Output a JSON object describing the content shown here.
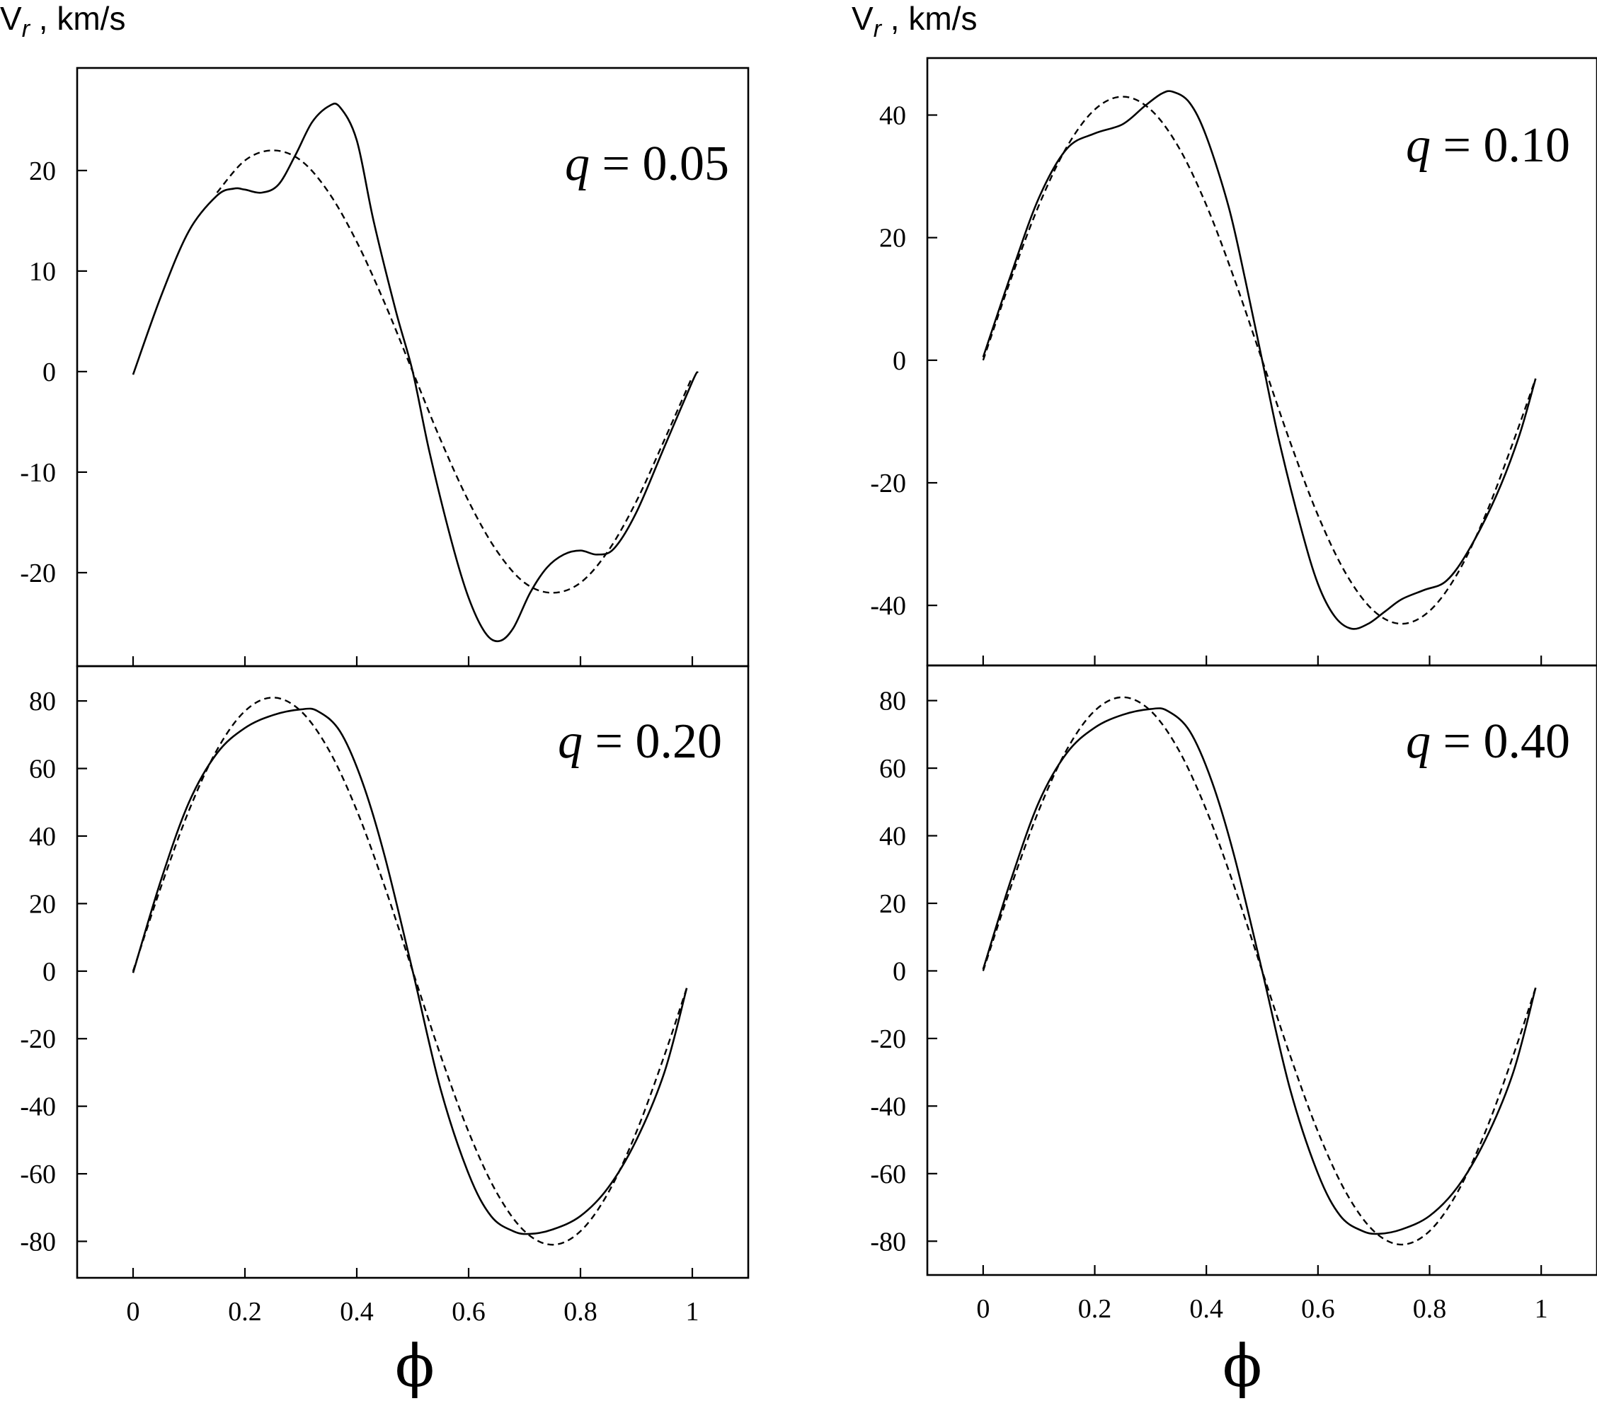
{
  "figure": {
    "y_axis_label_main": "V",
    "y_axis_label_sub": "r",
    "y_axis_label_unit": " , km/s",
    "x_axis_label": "ϕ"
  },
  "chart_data": [
    {
      "type": "line",
      "panel_label": "q = 0.05",
      "panel_label_var": "q",
      "panel_label_value": " = 0.05",
      "xlim": [
        -0.1,
        1.1
      ],
      "ylim": [
        -29.3,
        30.2
      ],
      "x_ticks": [
        0,
        0.2,
        0.4,
        0.6,
        0.8,
        1
      ],
      "x_tick_labels": [
        "0",
        "0.2",
        "0.4",
        "0.6",
        "0.8",
        "1"
      ],
      "y_ticks": [
        -20,
        -10,
        0,
        10,
        20
      ],
      "y_tick_labels": [
        "-20",
        "-10",
        "0",
        "10",
        "20"
      ],
      "series": [
        {
          "style": "solid",
          "points": [
            [
              0,
              -0.3
            ],
            [
              0.05,
              7.5
            ],
            [
              0.1,
              14
            ],
            [
              0.15,
              17.5
            ],
            [
              0.18,
              18.2
            ],
            [
              0.2,
              18.1
            ],
            [
              0.23,
              17.8
            ],
            [
              0.26,
              18.6
            ],
            [
              0.29,
              21.5
            ],
            [
              0.32,
              24.8
            ],
            [
              0.35,
              26.4
            ],
            [
              0.37,
              26.3
            ],
            [
              0.4,
              23
            ],
            [
              0.43,
              15
            ],
            [
              0.47,
              6
            ],
            [
              0.5,
              0
            ],
            [
              0.53,
              -8
            ],
            [
              0.57,
              -17
            ],
            [
              0.6,
              -22.5
            ],
            [
              0.63,
              -26
            ],
            [
              0.655,
              -26.8
            ],
            [
              0.68,
              -25.5
            ],
            [
              0.71,
              -22
            ],
            [
              0.74,
              -19.5
            ],
            [
              0.77,
              -18.2
            ],
            [
              0.8,
              -17.8
            ],
            [
              0.83,
              -18.2
            ],
            [
              0.86,
              -17.6
            ],
            [
              0.9,
              -14
            ],
            [
              0.95,
              -7.5
            ],
            [
              1.0,
              -1
            ],
            [
              1.01,
              0
            ]
          ]
        },
        {
          "style": "dashed",
          "points": [
            [
              0.15,
              17.8
            ],
            [
              0.2,
              21
            ],
            [
              0.25,
              22
            ],
            [
              0.3,
              21
            ],
            [
              0.35,
              17.8
            ],
            [
              0.4,
              12.9
            ],
            [
              0.45,
              6.8
            ],
            [
              0.5,
              0
            ],
            [
              0.55,
              -6.8
            ],
            [
              0.6,
              -12.9
            ],
            [
              0.65,
              -17.8
            ],
            [
              0.7,
              -21
            ],
            [
              0.75,
              -22
            ],
            [
              0.8,
              -21
            ],
            [
              0.85,
              -17.8
            ],
            [
              0.9,
              -12.9
            ],
            [
              0.95,
              -6.8
            ],
            [
              1.0,
              -0.5
            ]
          ]
        }
      ]
    },
    {
      "type": "line",
      "panel_label": "q = 0.10",
      "panel_label_var": "q",
      "panel_label_value": " = 0.10",
      "xlim": [
        -0.1,
        1.1
      ],
      "ylim": [
        -49.8,
        49.3
      ],
      "x_ticks": [
        0,
        0.2,
        0.4,
        0.6,
        0.8,
        1
      ],
      "x_tick_labels": [
        "0",
        "0.2",
        "0.4",
        "0.6",
        "0.8",
        "1"
      ],
      "y_ticks": [
        -40,
        -20,
        0,
        20,
        40
      ],
      "y_tick_labels": [
        "-40",
        "-20",
        "0",
        "20",
        "40"
      ],
      "series": [
        {
          "style": "solid",
          "points": [
            [
              0,
              0.5
            ],
            [
              0.05,
              14
            ],
            [
              0.1,
              26.5
            ],
            [
              0.15,
              34.5
            ],
            [
              0.2,
              37
            ],
            [
              0.25,
              38.5
            ],
            [
              0.29,
              41.5
            ],
            [
              0.32,
              43.5
            ],
            [
              0.34,
              43.8
            ],
            [
              0.37,
              42
            ],
            [
              0.4,
              36.5
            ],
            [
              0.44,
              25
            ],
            [
              0.47,
              13
            ],
            [
              0.5,
              0
            ],
            [
              0.53,
              -13
            ],
            [
              0.57,
              -27.5
            ],
            [
              0.6,
              -36.5
            ],
            [
              0.63,
              -41.8
            ],
            [
              0.66,
              -43.8
            ],
            [
              0.69,
              -43
            ],
            [
              0.72,
              -41
            ],
            [
              0.75,
              -39
            ],
            [
              0.79,
              -37.5
            ],
            [
              0.83,
              -36
            ],
            [
              0.87,
              -31
            ],
            [
              0.92,
              -22
            ],
            [
              0.96,
              -12.5
            ],
            [
              0.99,
              -3
            ]
          ]
        },
        {
          "style": "dashed",
          "points": [
            [
              0,
              0
            ],
            [
              0.05,
              13.3
            ],
            [
              0.1,
              25.3
            ],
            [
              0.15,
              34.8
            ],
            [
              0.2,
              40.9
            ],
            [
              0.25,
              43
            ],
            [
              0.3,
              40.9
            ],
            [
              0.35,
              34.8
            ],
            [
              0.4,
              25.3
            ],
            [
              0.45,
              13.3
            ],
            [
              0.5,
              0
            ],
            [
              0.55,
              -13.3
            ],
            [
              0.6,
              -25.3
            ],
            [
              0.65,
              -34.8
            ],
            [
              0.7,
              -40.9
            ],
            [
              0.75,
              -43
            ],
            [
              0.8,
              -40.9
            ],
            [
              0.85,
              -34.8
            ],
            [
              0.9,
              -25.3
            ],
            [
              0.95,
              -13.3
            ],
            [
              0.99,
              -3
            ]
          ]
        }
      ]
    },
    {
      "type": "line",
      "panel_label": "q = 0.20",
      "panel_label_var": "q",
      "panel_label_value": " = 0.20",
      "xlim": [
        -0.1,
        1.1
      ],
      "ylim": [
        -90.8,
        90.3
      ],
      "x_ticks": [
        0,
        0.2,
        0.4,
        0.6,
        0.8,
        1
      ],
      "x_tick_labels": [
        "0",
        "0.2",
        "0.4",
        "0.6",
        "0.8",
        "1"
      ],
      "y_ticks": [
        -80,
        -60,
        -40,
        -20,
        0,
        20,
        40,
        60,
        80
      ],
      "y_tick_labels": [
        "-80",
        "-60",
        "-40",
        "-20",
        "0",
        "20",
        "40",
        "60",
        "80"
      ],
      "series": [
        {
          "style": "solid",
          "points": [
            [
              0,
              -0.5
            ],
            [
              0.05,
              27
            ],
            [
              0.1,
              50
            ],
            [
              0.15,
              64.5
            ],
            [
              0.2,
              72
            ],
            [
              0.25,
              75.8
            ],
            [
              0.3,
              77.5
            ],
            [
              0.33,
              77
            ],
            [
              0.37,
              71
            ],
            [
              0.41,
              56
            ],
            [
              0.45,
              34
            ],
            [
              0.5,
              0
            ],
            [
              0.55,
              -35
            ],
            [
              0.6,
              -60
            ],
            [
              0.64,
              -72.5
            ],
            [
              0.68,
              -77
            ],
            [
              0.71,
              -77.8
            ],
            [
              0.75,
              -76.5
            ],
            [
              0.8,
              -72.5
            ],
            [
              0.85,
              -64
            ],
            [
              0.9,
              -50
            ],
            [
              0.95,
              -30
            ],
            [
              0.99,
              -5
            ]
          ]
        },
        {
          "style": "dashed",
          "points": [
            [
              0,
              0
            ],
            [
              0.05,
              25
            ],
            [
              0.1,
              47.6
            ],
            [
              0.15,
              65.5
            ],
            [
              0.2,
              77
            ],
            [
              0.25,
              81
            ],
            [
              0.3,
              77
            ],
            [
              0.35,
              65.5
            ],
            [
              0.4,
              47.6
            ],
            [
              0.45,
              25
            ],
            [
              0.5,
              0
            ],
            [
              0.55,
              -25
            ],
            [
              0.6,
              -47.6
            ],
            [
              0.65,
              -65.5
            ],
            [
              0.7,
              -77
            ],
            [
              0.75,
              -81
            ],
            [
              0.8,
              -77
            ],
            [
              0.85,
              -65.5
            ],
            [
              0.9,
              -47.6
            ],
            [
              0.95,
              -25
            ],
            [
              0.99,
              -5
            ]
          ]
        }
      ]
    },
    {
      "type": "line",
      "panel_label": "q = 0.40",
      "panel_label_var": "q",
      "panel_label_value": " = 0.40",
      "xlim": [
        -0.1,
        1.1
      ],
      "ylim": [
        -90,
        90.4
      ],
      "x_ticks": [
        0,
        0.2,
        0.4,
        0.6,
        0.8,
        1
      ],
      "x_tick_labels": [
        "0",
        "0.2",
        "0.4",
        "0.6",
        "0.8",
        "1"
      ],
      "y_ticks": [
        -80,
        -60,
        -40,
        -20,
        0,
        20,
        40,
        60,
        80
      ],
      "y_tick_labels": [
        "-80",
        "-60",
        "-40",
        "-20",
        "0",
        "20",
        "40",
        "60",
        "80"
      ],
      "series": [
        {
          "style": "solid",
          "points": [
            [
              0,
              0.5
            ],
            [
              0.05,
              27
            ],
            [
              0.1,
              50
            ],
            [
              0.15,
              64.5
            ],
            [
              0.2,
              72
            ],
            [
              0.25,
              75.8
            ],
            [
              0.3,
              77.5
            ],
            [
              0.33,
              77
            ],
            [
              0.37,
              71
            ],
            [
              0.41,
              56
            ],
            [
              0.45,
              34
            ],
            [
              0.5,
              0
            ],
            [
              0.55,
              -35
            ],
            [
              0.6,
              -60
            ],
            [
              0.64,
              -72.5
            ],
            [
              0.68,
              -77
            ],
            [
              0.71,
              -77.8
            ],
            [
              0.75,
              -76.5
            ],
            [
              0.8,
              -72.5
            ],
            [
              0.85,
              -64
            ],
            [
              0.9,
              -50
            ],
            [
              0.95,
              -30
            ],
            [
              0.99,
              -5
            ]
          ]
        },
        {
          "style": "dashed",
          "points": [
            [
              0,
              0
            ],
            [
              0.05,
              25
            ],
            [
              0.1,
              47.6
            ],
            [
              0.15,
              65.5
            ],
            [
              0.2,
              77
            ],
            [
              0.25,
              81
            ],
            [
              0.3,
              77
            ],
            [
              0.35,
              65.5
            ],
            [
              0.4,
              47.6
            ],
            [
              0.45,
              25
            ],
            [
              0.5,
              0
            ],
            [
              0.55,
              -25
            ],
            [
              0.6,
              -47.6
            ],
            [
              0.65,
              -65.5
            ],
            [
              0.7,
              -77
            ],
            [
              0.75,
              -81
            ],
            [
              0.8,
              -77
            ],
            [
              0.85,
              -65.5
            ],
            [
              0.9,
              -47.6
            ],
            [
              0.95,
              -25
            ],
            [
              0.99,
              -5
            ]
          ]
        }
      ]
    }
  ]
}
